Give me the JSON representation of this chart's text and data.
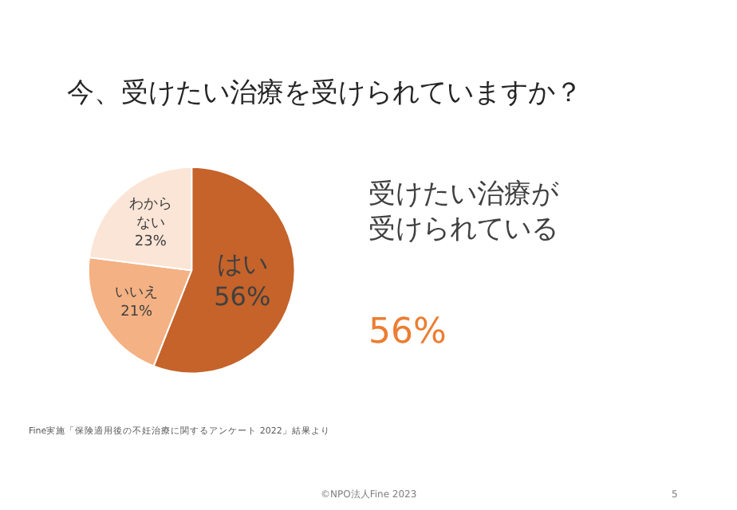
{
  "chart_data": {
    "type": "pie",
    "title": "今、受けたい治療を受けられていますか？",
    "categories": [
      "はい",
      "いいえ",
      "わからない"
    ],
    "values": [
      56,
      21,
      23
    ],
    "colors": [
      "#c5632a",
      "#f4b183",
      "#fbe5d6"
    ],
    "value_labels": [
      "56%",
      "21%",
      "23%"
    ],
    "legend": false,
    "annotations": [
      "受けたい治療が受けられている",
      "56%",
      "Fine実施「保険適用後の不妊治療に関するアンケート 2022」結果より",
      "©NPO法人Fine 2023",
      "5"
    ]
  }
}
